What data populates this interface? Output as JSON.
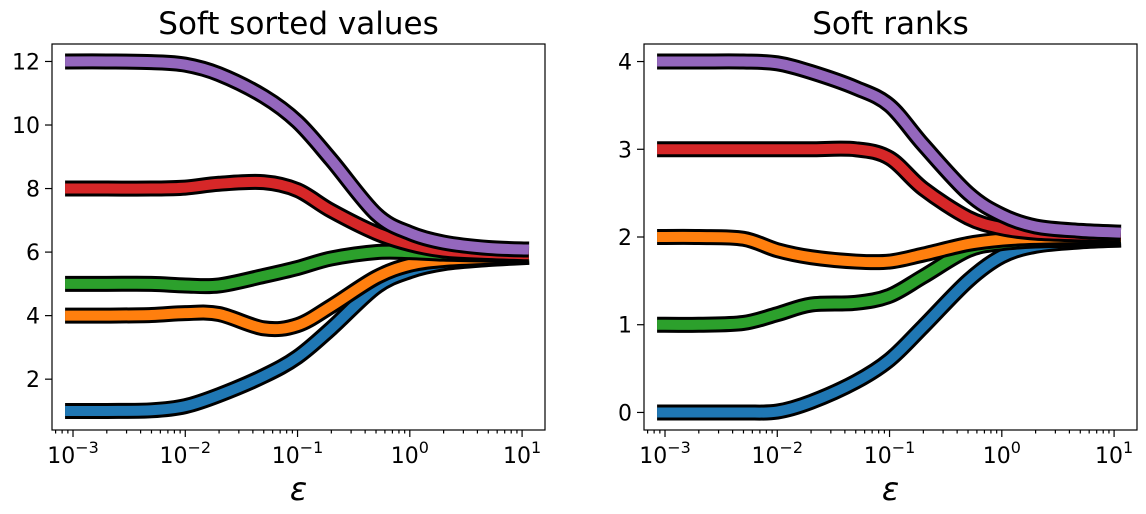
{
  "chart_data": [
    {
      "type": "line",
      "title": "Soft sorted values",
      "xlabel": "ε",
      "ylabel": "",
      "xscale": "log",
      "xlim": [
        0.00065,
        16
      ],
      "ylim": [
        0.4,
        12.55
      ],
      "xticks": [
        0.001,
        0.01,
        0.1,
        1,
        10
      ],
      "xtick_labels": [
        {
          "base": "10",
          "exp": "−3"
        },
        {
          "base": "10",
          "exp": "−2"
        },
        {
          "base": "10",
          "exp": "−1"
        },
        {
          "base": "10",
          "exp": "0"
        },
        {
          "base": "10",
          "exp": "1"
        }
      ],
      "yticks": [
        2,
        4,
        6,
        8,
        10,
        12
      ],
      "ytick_labels": [
        "2",
        "4",
        "6",
        "8",
        "10",
        "12"
      ],
      "x": [
        0.00085,
        0.002,
        0.005,
        0.01,
        0.02,
        0.05,
        0.1,
        0.2,
        0.5,
        1,
        2,
        5,
        11.5
      ],
      "series": [
        {
          "name": "blue",
          "color": "#1f77b4",
          "values": [
            1.0,
            1.0,
            1.02,
            1.15,
            1.5,
            2.1,
            2.7,
            3.6,
            4.9,
            5.4,
            5.65,
            5.78,
            5.85
          ]
        },
        {
          "name": "orange",
          "color": "#ff7f0e",
          "values": [
            4.0,
            4.0,
            4.02,
            4.08,
            4.05,
            3.6,
            3.7,
            4.3,
            5.2,
            5.6,
            5.75,
            5.82,
            5.87
          ]
        },
        {
          "name": "green",
          "color": "#2ca02c",
          "values": [
            5.0,
            5.0,
            5.0,
            4.95,
            4.95,
            5.25,
            5.5,
            5.8,
            6.0,
            6.0,
            5.95,
            5.92,
            5.9
          ]
        },
        {
          "name": "red",
          "color": "#d62728",
          "values": [
            8.0,
            8.0,
            8.0,
            8.03,
            8.15,
            8.2,
            7.95,
            7.3,
            6.6,
            6.25,
            6.05,
            5.97,
            5.93
          ]
        },
        {
          "name": "purple",
          "color": "#9467bd",
          "values": [
            12.0,
            12.0,
            11.98,
            11.9,
            11.6,
            10.9,
            10.1,
            8.9,
            7.2,
            6.6,
            6.3,
            6.13,
            6.08
          ]
        }
      ]
    },
    {
      "type": "line",
      "title": "Soft ranks",
      "xlabel": "ε",
      "ylabel": "",
      "xscale": "log",
      "xlim": [
        0.00065,
        16
      ],
      "ylim": [
        -0.2,
        4.2
      ],
      "xticks": [
        0.001,
        0.01,
        0.1,
        1,
        10
      ],
      "xtick_labels": [
        {
          "base": "10",
          "exp": "−3"
        },
        {
          "base": "10",
          "exp": "−2"
        },
        {
          "base": "10",
          "exp": "−1"
        },
        {
          "base": "10",
          "exp": "0"
        },
        {
          "base": "10",
          "exp": "1"
        }
      ],
      "yticks": [
        0,
        1,
        2,
        3,
        4
      ],
      "ytick_labels": [
        "0",
        "1",
        "2",
        "3",
        "4"
      ],
      "x": [
        0.00085,
        0.002,
        0.005,
        0.01,
        0.02,
        0.05,
        0.1,
        0.2,
        0.5,
        1,
        2,
        5,
        11.5
      ],
      "series": [
        {
          "name": "blue",
          "color": "#1f77b4",
          "values": [
            0.0,
            0.0,
            0.0,
            0.01,
            0.12,
            0.35,
            0.6,
            0.98,
            1.5,
            1.78,
            1.9,
            1.95,
            1.97
          ]
        },
        {
          "name": "green",
          "color": "#2ca02c",
          "values": [
            1.0,
            1.0,
            1.02,
            1.12,
            1.23,
            1.25,
            1.33,
            1.55,
            1.85,
            1.93,
            1.96,
            1.97,
            1.98
          ]
        },
        {
          "name": "orange",
          "color": "#ff7f0e",
          "values": [
            2.0,
            2.0,
            1.98,
            1.85,
            1.77,
            1.72,
            1.72,
            1.8,
            1.92,
            1.97,
            1.99,
            2.0,
            2.0
          ]
        },
        {
          "name": "red",
          "color": "#d62728",
          "values": [
            3.0,
            3.0,
            3.0,
            3.0,
            3.0,
            3.0,
            2.9,
            2.55,
            2.22,
            2.1,
            2.05,
            2.03,
            2.02
          ]
        },
        {
          "name": "purple",
          "color": "#9467bd",
          "values": [
            4.0,
            4.0,
            4.0,
            3.98,
            3.88,
            3.7,
            3.5,
            3.05,
            2.5,
            2.25,
            2.12,
            2.07,
            2.05
          ]
        }
      ]
    }
  ]
}
